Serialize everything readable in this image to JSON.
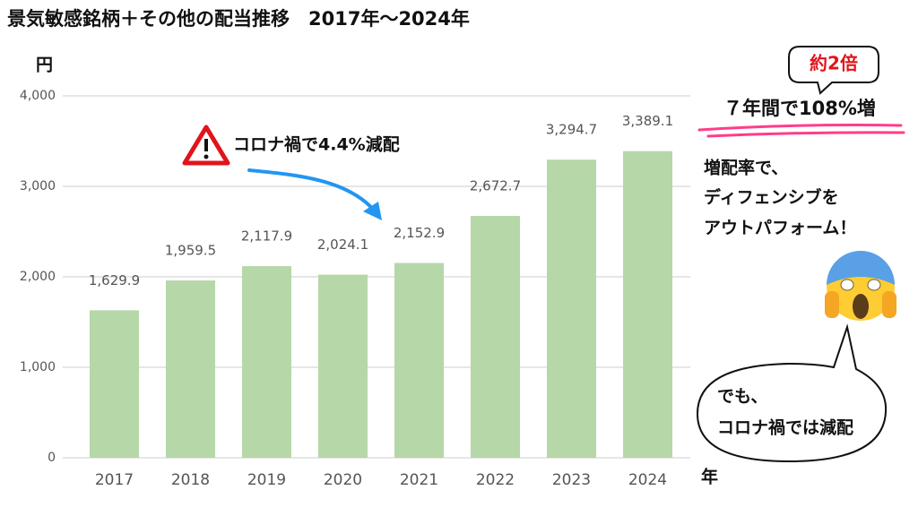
{
  "chart_data": {
    "type": "bar",
    "title": "景気敏感銘柄＋その他の配当推移　2017年〜2024年",
    "y_label": "円",
    "x_label": "年",
    "categories": [
      "2017",
      "2018",
      "2019",
      "2020",
      "2021",
      "2022",
      "2023",
      "2024"
    ],
    "values": [
      1629.9,
      1959.5,
      2117.9,
      2024.1,
      2152.9,
      2672.7,
      3294.7,
      3389.1
    ],
    "value_labels": [
      "1,629.9",
      "1,959.5",
      "2,117.9",
      "2,024.1",
      "2,152.9",
      "2,672.7",
      "3,294.7",
      "3,389.1"
    ],
    "color": "#b6d7a8",
    "ylim": [
      0,
      4000
    ],
    "yticks": [
      0,
      {
        "value": 1000,
        "label": "1,000"
      },
      {
        "value": 2000,
        "label": "2,000"
      },
      {
        "value": 3000,
        "label": "3,000"
      },
      {
        "value": 4000,
        "label": "4,000"
      }
    ],
    "grid": true,
    "annotations": {
      "covid": "コロナ禍で4.4%減配",
      "double": "約2倍",
      "growth": "７年間で108%増",
      "outperform": [
        "増配率で、",
        "ディフェンシブを",
        "アウトパフォーム！"
      ],
      "bubble": [
        "でも、",
        "コロナ禍では減配"
      ]
    }
  }
}
